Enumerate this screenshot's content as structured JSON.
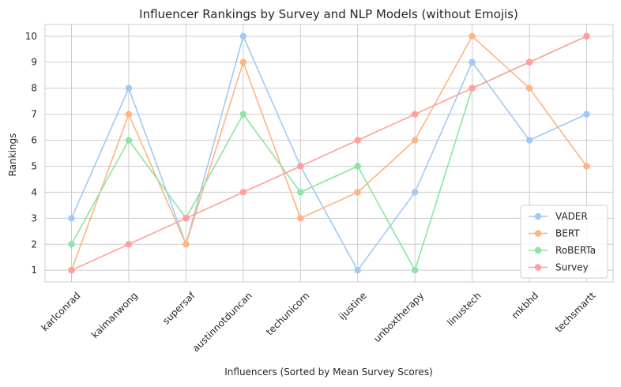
{
  "chart_data": {
    "type": "line",
    "title": "Influencer Rankings by Survey and NLP Models (without Emojis)",
    "xlabel": "Influencers (Sorted by Mean Survey Scores)",
    "ylabel": "Rankings",
    "categories": [
      "karlconrad",
      "kaimanwong",
      "supersaf",
      "austinnotduncan",
      "techunicorn",
      "ijustine",
      "unboxtherapy",
      "linustech",
      "mkbhd",
      "techsmartt"
    ],
    "yticks": [
      1,
      2,
      3,
      4,
      5,
      6,
      7,
      8,
      9,
      10
    ],
    "ylim": [
      0.55,
      10.45
    ],
    "grid": true,
    "legend_position": "lower-right",
    "series": [
      {
        "name": "VADER",
        "color": "#a1c9f4",
        "values": [
          3,
          8,
          2,
          10,
          5,
          1,
          4,
          9,
          6,
          7
        ]
      },
      {
        "name": "BERT",
        "color": "#ffb482",
        "values": [
          1,
          7,
          2,
          9,
          3,
          4,
          6,
          10,
          8,
          5
        ]
      },
      {
        "name": "RoBERTa",
        "color": "#8de5a1",
        "values": [
          2,
          6,
          3,
          7,
          4,
          5,
          1,
          8,
          9,
          10
        ]
      },
      {
        "name": "Survey",
        "color": "#ff9f9b",
        "values": [
          1,
          2,
          3,
          4,
          5,
          6,
          7,
          8,
          9,
          10
        ]
      }
    ]
  }
}
